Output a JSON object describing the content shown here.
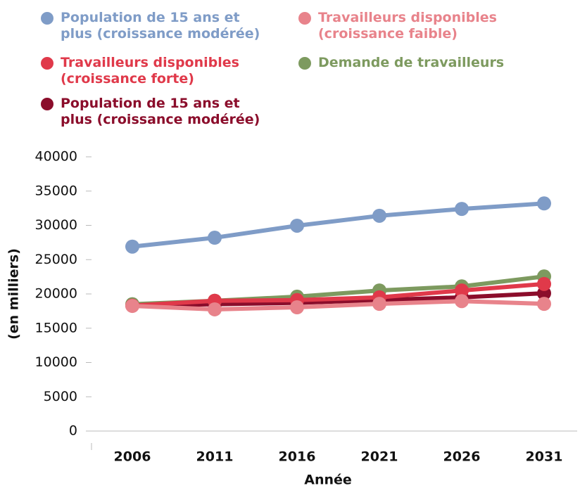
{
  "chart_data": {
    "type": "line",
    "x_label": "Année",
    "y_label": "(en milliers)",
    "categories": [
      "2006",
      "2011",
      "2016",
      "2021",
      "2026",
      "2031"
    ],
    "series": [
      {
        "name": "Population de 15 ans et plus (croissance modérée)",
        "color": "#7f9cc7",
        "values": [
          26900,
          28200,
          29950,
          31400,
          32400,
          33200
        ]
      },
      {
        "name": "Travailleurs disponibles (croissance faible)",
        "color": "#e8838b",
        "values": [
          18250,
          17750,
          18050,
          18550,
          18950,
          18550
        ]
      },
      {
        "name": "Travailleurs disponibles (croissance forte)",
        "color": "#e0394a",
        "values": [
          18300,
          19000,
          19100,
          19500,
          20500,
          21450
        ]
      },
      {
        "name": "Demande de travailleurs",
        "color": "#7d9a5f",
        "values": [
          18500,
          19000,
          19600,
          20500,
          21100,
          22550
        ]
      },
      {
        "name": "Population de 15 ans et plus (croissance modérée)",
        "color": "#8b0d2b",
        "values": [
          18300,
          18500,
          18700,
          19100,
          19500,
          20100
        ]
      }
    ],
    "ylim": [
      0,
      40000
    ],
    "yticks": [
      0,
      5000,
      10000,
      15000,
      20000,
      25000,
      30000,
      35000,
      40000
    ]
  }
}
